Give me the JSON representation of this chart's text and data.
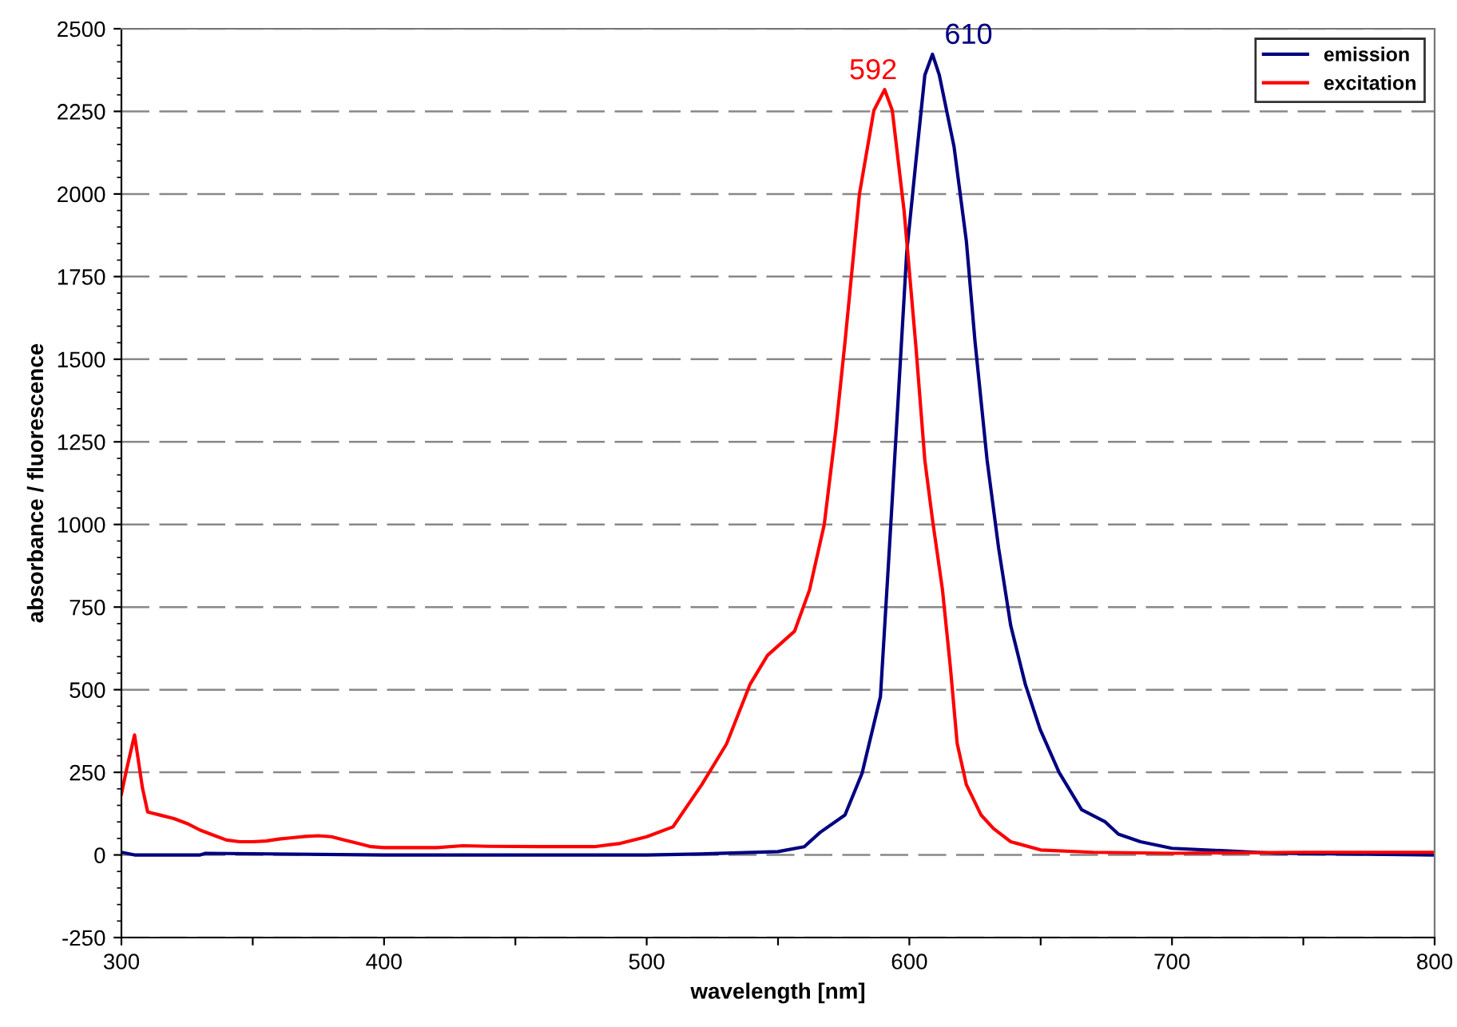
{
  "chart_data": {
    "type": "line",
    "xlabel": "wavelength [nm]",
    "ylabel": "absorbance / fluorescence",
    "xlim": [
      300,
      800
    ],
    "ylim": [
      -250,
      2500
    ],
    "xticks": [
      300,
      {
        "value": 350,
        "label": null
      },
      400,
      {
        "value": 450,
        "label": null
      },
      500,
      {
        "value": 550,
        "label": null
      },
      600,
      {
        "value": 650,
        "label": null
      },
      700,
      {
        "value": 750,
        "label": null
      },
      800
    ],
    "yticks": [
      -250,
      0,
      250,
      500,
      750,
      1000,
      1250,
      1500,
      1750,
      2000,
      2250,
      2500
    ],
    "grid": "y",
    "legend": "top right",
    "marker": "none",
    "line_style": "solid",
    "annotations": [
      {
        "text": "610",
        "x": 610,
        "y": 2423
      },
      {
        "text": "592",
        "x": 592,
        "y": 2316
      }
    ],
    "series": [
      {
        "name": "emission",
        "color": "#000080",
        "x": [
          300,
          305,
          330,
          332,
          400,
          500,
          520,
          550,
          560,
          566,
          575.5,
          582,
          589,
          592.4,
          595.7,
          599,
          602.4,
          605.9,
          608.8,
          611.4,
          617,
          621.7,
          625,
          629.6,
          634,
          638.6,
          644.2,
          649.8,
          657,
          665.6,
          674.6,
          679.6,
          688,
          700,
          740,
          800
        ],
        "values": [
          8,
          0,
          0,
          5,
          0,
          0,
          3,
          10,
          25,
          68,
          121,
          247,
          479,
          928,
          1373,
          1823,
          2091,
          2360,
          2423,
          2360,
          2144,
          1858,
          1554,
          1195,
          928,
          694,
          515,
          380,
          250,
          137,
          100,
          63,
          40,
          20,
          5,
          0
        ]
      },
      {
        "name": "excitation",
        "color": "#ff0000",
        "x": [
          300,
          302,
          305,
          308,
          310,
          315,
          320,
          325,
          330,
          335,
          340,
          345,
          350,
          355,
          360,
          365,
          370,
          375,
          380,
          385,
          390,
          395,
          400,
          420,
          430,
          440,
          460,
          480,
          490,
          500,
          510,
          521,
          530.4,
          539.4,
          546,
          556.3,
          562,
          567.6,
          572,
          575.5,
          581,
          586.5,
          590.6,
          593.5,
          598,
          602.5,
          605.9,
          608.8,
          612.6,
          615.6,
          618.2,
          621.7,
          627.3,
          632,
          638.6,
          650,
          670,
          700,
          750,
          800
        ],
        "values": [
          184,
          260,
          363,
          203,
          130,
          120,
          110,
          95,
          75,
          60,
          45,
          40,
          40,
          42,
          48,
          52,
          56,
          58,
          55,
          45,
          35,
          25,
          22,
          22,
          28,
          26,
          25,
          25,
          35,
          55,
          85,
          213,
          336,
          517,
          604,
          677,
          802,
          1000,
          1286,
          1552,
          2000,
          2253,
          2316,
          2253,
          1949,
          1538,
          1194,
          1015,
          803,
          570,
          338,
          213,
          121,
          80,
          40,
          15,
          8,
          5,
          8,
          8
        ]
      }
    ]
  }
}
